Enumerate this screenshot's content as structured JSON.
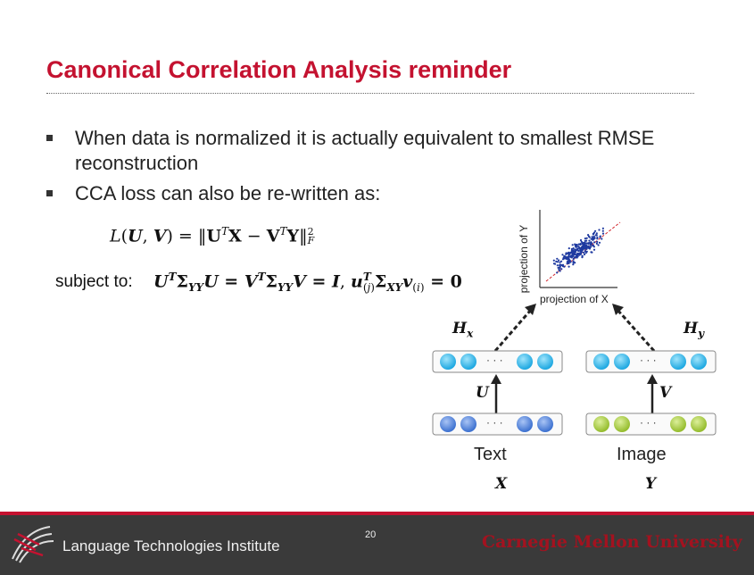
{
  "slide": {
    "title": "Canonical Correlation Analysis reminder",
    "bullets": [
      "When data is normalized it is actually equivalent to smallest RMSE reconstruction",
      "CCA loss can also be re-written as:"
    ],
    "subject_to": "subject to:"
  },
  "diagram": {
    "y_axis_label": "projection of Y",
    "x_axis_label": "projection of X",
    "hx_label": "H",
    "hx_sub": "x",
    "hy_label": "H",
    "hy_sub": "y",
    "u_label": "U",
    "v_label": "V",
    "ellipsis": "· · ·",
    "left_input": "Text",
    "right_input": "Image",
    "left_var": "X",
    "right_var": "Y"
  },
  "footer": {
    "institute": "Language Technologies Institute",
    "page_number": "20",
    "university": "Carnegie Mellon University"
  },
  "colors": {
    "title_red": "#c41230",
    "footer_bg": "#3a3a3a",
    "node_cyan": "#29b6ea",
    "node_blue": "#4a7fd6",
    "node_green": "#a6c93a"
  }
}
